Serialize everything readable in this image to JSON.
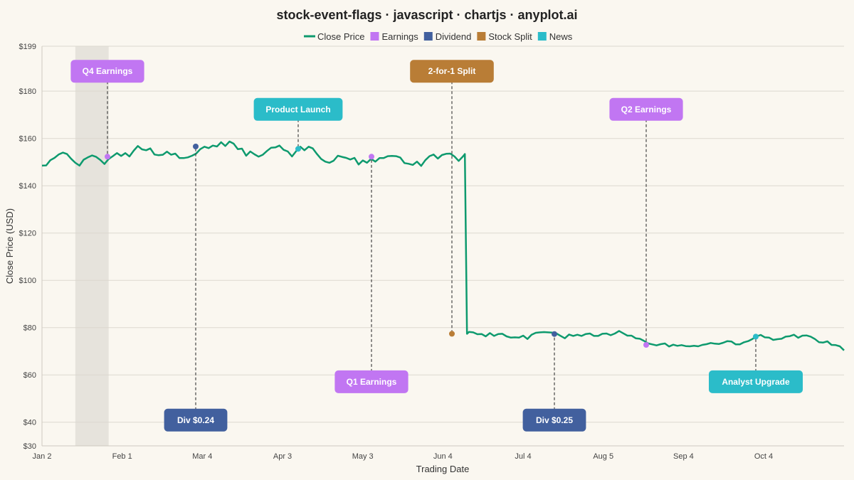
{
  "chart_data": {
    "type": "line",
    "title": "stock-event-flags · javascript · chartjs · anyplot.ai",
    "xlabel": "Trading Date",
    "ylabel": "Close Price (USD)",
    "ylim": [
      30,
      199
    ],
    "y_ticks": [
      "$199",
      "$180",
      "$160",
      "$140",
      "$120",
      "$100",
      "$80",
      "$60",
      "$40",
      "$30"
    ],
    "y_tick_values": [
      199,
      180,
      160,
      140,
      120,
      100,
      80,
      60,
      40,
      30
    ],
    "x_ticks": [
      "Jan 2",
      "Feb 1",
      "Mar 4",
      "Apr 3",
      "May 3",
      "Jun 4",
      "Jul 4",
      "Aug 5",
      "Sep 4",
      "Oct 4"
    ],
    "x_tick_days": [
      0,
      30,
      60,
      90,
      120,
      150,
      180,
      210,
      240,
      270
    ],
    "x_range_days": [
      0,
      298
    ],
    "grid": true,
    "legend_position": "top-center",
    "legend": [
      {
        "label": "Close Price",
        "color": "#0e9a6e",
        "shape": "line"
      },
      {
        "label": "Earnings",
        "color": "#c176f2",
        "shape": "box"
      },
      {
        "label": "Dividend",
        "color": "#42609e",
        "shape": "box"
      },
      {
        "label": "Stock Split",
        "color": "#b97d36",
        "shape": "box"
      },
      {
        "label": "News",
        "color": "#2bbcc9",
        "shape": "box"
      }
    ],
    "series": [
      {
        "name": "Close Price",
        "color": "#0e9a6e",
        "points": [
          [
            0,
            148.5
          ],
          [
            2,
            148.6
          ],
          [
            4,
            150.8
          ],
          [
            6,
            151.8
          ],
          [
            8,
            153.2
          ],
          [
            10,
            154
          ],
          [
            12,
            153.4
          ],
          [
            14,
            151.4
          ],
          [
            16,
            149.7
          ],
          [
            18,
            148.5
          ],
          [
            20,
            151
          ],
          [
            22,
            152
          ],
          [
            24,
            152.8
          ],
          [
            26,
            152.2
          ],
          [
            28,
            150.9
          ],
          [
            30,
            149.2
          ],
          [
            32,
            151.3
          ],
          [
            34,
            152.5
          ],
          [
            36,
            153.8
          ],
          [
            38,
            152.6
          ],
          [
            40,
            153.8
          ],
          [
            42,
            152.4
          ],
          [
            44,
            154.8
          ],
          [
            46,
            156.8
          ],
          [
            48,
            155.4
          ],
          [
            50,
            155
          ],
          [
            52,
            155.8
          ],
          [
            54,
            153.2
          ],
          [
            56,
            152.9
          ],
          [
            58,
            153.1
          ],
          [
            60,
            154.4
          ],
          [
            62,
            153.1
          ],
          [
            64,
            153.6
          ],
          [
            66,
            151.7
          ],
          [
            68,
            151.7
          ],
          [
            70,
            152
          ],
          [
            72,
            152.7
          ],
          [
            74,
            153.6
          ],
          [
            76,
            155.5
          ],
          [
            78,
            156.5
          ],
          [
            80,
            155.9
          ],
          [
            82,
            157
          ],
          [
            84,
            156.6
          ],
          [
            86,
            158.4
          ],
          [
            88,
            156.8
          ],
          [
            90,
            158.7
          ],
          [
            92,
            157.8
          ],
          [
            94,
            155.5
          ],
          [
            96,
            155.7
          ],
          [
            98,
            152.7
          ],
          [
            100,
            154.5
          ],
          [
            102,
            153.3
          ],
          [
            104,
            152.3
          ],
          [
            106,
            153.1
          ],
          [
            108,
            154.7
          ],
          [
            110,
            156.1
          ],
          [
            112,
            156.2
          ],
          [
            114,
            157
          ],
          [
            116,
            155.2
          ],
          [
            118,
            154.5
          ],
          [
            120,
            152.4
          ],
          [
            122,
            154.6
          ],
          [
            124,
            156.5
          ],
          [
            126,
            155
          ],
          [
            128,
            156.5
          ],
          [
            130,
            155.8
          ],
          [
            132,
            153.4
          ],
          [
            134,
            151.3
          ],
          [
            136,
            150.2
          ],
          [
            138,
            149.7
          ],
          [
            140,
            150.6
          ],
          [
            142,
            152.7
          ],
          [
            144,
            152.2
          ],
          [
            146,
            151.8
          ],
          [
            148,
            151.1
          ],
          [
            150,
            151.8
          ],
          [
            152,
            149
          ],
          [
            154,
            150.7
          ],
          [
            156,
            149.7
          ],
          [
            158,
            151.4
          ],
          [
            160,
            150.2
          ],
          [
            162,
            151.7
          ],
          [
            164,
            151.7
          ],
          [
            166,
            152.5
          ],
          [
            168,
            152.6
          ],
          [
            170,
            152.5
          ],
          [
            172,
            151.9
          ],
          [
            174,
            149.6
          ],
          [
            176,
            149.3
          ],
          [
            178,
            148.8
          ],
          [
            180,
            150.2
          ],
          [
            182,
            148.4
          ],
          [
            184,
            150.8
          ],
          [
            186,
            152.5
          ],
          [
            188,
            153.2
          ],
          [
            190,
            151.5
          ],
          [
            192,
            153
          ],
          [
            194,
            153.5
          ],
          [
            196,
            153.6
          ],
          [
            198,
            152.4
          ],
          [
            200,
            150.5
          ],
          [
            202,
            152.3
          ],
          [
            203,
            153.4
          ],
          [
            204,
            77.4
          ],
          [
            205,
            78.2
          ],
          [
            207,
            78
          ],
          [
            209,
            77.2
          ],
          [
            211,
            77.3
          ],
          [
            213,
            76.3
          ],
          [
            215,
            77.7
          ],
          [
            217,
            76.5
          ],
          [
            219,
            77.3
          ],
          [
            221,
            77.4
          ],
          [
            223,
            76.3
          ],
          [
            225,
            75.8
          ],
          [
            227,
            75.9
          ],
          [
            229,
            75.8
          ],
          [
            231,
            76.6
          ],
          [
            233,
            75.2
          ],
          [
            235,
            77
          ],
          [
            237,
            77.8
          ],
          [
            239,
            78
          ],
          [
            241,
            78.1
          ],
          [
            243,
            78
          ],
          [
            245,
            77.9
          ],
          [
            247,
            77.5
          ],
          [
            249,
            76.5
          ],
          [
            251,
            75.5
          ],
          [
            253,
            77.1
          ],
          [
            255,
            76.5
          ],
          [
            257,
            77
          ],
          [
            259,
            76.5
          ],
          [
            261,
            77.3
          ],
          [
            263,
            77.5
          ],
          [
            265,
            76.5
          ],
          [
            267,
            76.5
          ],
          [
            269,
            77.4
          ],
          [
            271,
            77.5
          ],
          [
            273,
            76.8
          ],
          [
            275,
            77.5
          ],
          [
            277,
            78.6
          ],
          [
            279,
            77.6
          ],
          [
            281,
            76.6
          ],
          [
            283,
            76.6
          ],
          [
            285,
            75.5
          ],
          [
            287,
            75.3
          ],
          [
            289,
            74.4
          ],
          [
            291,
            73.3
          ],
          [
            293,
            72.9
          ],
          [
            295,
            72.5
          ],
          [
            297,
            73
          ],
          [
            299,
            73.3
          ],
          [
            301,
            72
          ],
          [
            303,
            72.8
          ],
          [
            305,
            72.3
          ],
          [
            307,
            72.6
          ],
          [
            309,
            72.2
          ],
          [
            311,
            72.1
          ],
          [
            313,
            72.3
          ],
          [
            315,
            72.1
          ],
          [
            317,
            72.7
          ],
          [
            319,
            73
          ],
          [
            321,
            73.5
          ],
          [
            323,
            73.2
          ],
          [
            325,
            73.1
          ],
          [
            327,
            73.6
          ],
          [
            329,
            74.3
          ],
          [
            331,
            74.1
          ],
          [
            333,
            72.9
          ],
          [
            335,
            72.9
          ],
          [
            337,
            73.8
          ],
          [
            339,
            74.3
          ],
          [
            341,
            75.2
          ],
          [
            343,
            76.3
          ],
          [
            345,
            76.9
          ],
          [
            347,
            75.9
          ],
          [
            349,
            75.8
          ],
          [
            351,
            74.8
          ],
          [
            353,
            75.1
          ],
          [
            355,
            75.3
          ],
          [
            357,
            76.2
          ],
          [
            359,
            76.4
          ],
          [
            361,
            77
          ],
          [
            363,
            75.7
          ],
          [
            365,
            76.6
          ],
          [
            367,
            76.7
          ],
          [
            369,
            76.2
          ],
          [
            371,
            75.2
          ],
          [
            373,
            73.8
          ],
          [
            375,
            73.7
          ],
          [
            377,
            74.2
          ],
          [
            379,
            72.7
          ],
          [
            381,
            72.6
          ],
          [
            383,
            72.1
          ],
          [
            385,
            70.4
          ]
        ]
      }
    ],
    "shaded_regions": [
      {
        "from_day": 16,
        "to_day": 32,
        "color": "#e6e3dc"
      }
    ],
    "events": [
      {
        "label": "Q4 Earnings",
        "type": "Earnings",
        "day": 24,
        "value": 152.3,
        "flag_value": 188.4,
        "color": "#c176f2"
      },
      {
        "label": "Div $0.24",
        "type": "Dividend",
        "day": 57,
        "value": 156.6,
        "flag_value": 40.9,
        "color": "#42609e"
      },
      {
        "label": "Product Launch",
        "type": "News",
        "day": 95,
        "value": 155.6,
        "flag_value": 172.3,
        "color": "#2bbcc9"
      },
      {
        "label": "Q1 Earnings",
        "type": "Earnings",
        "day": 125,
        "value": 152.3,
        "flag_value": 57.1,
        "color": "#c176f2"
      },
      {
        "label": "2-for-1 Split",
        "type": "Stock Split",
        "day": 155,
        "value": 77.4,
        "flag_value": 188.4,
        "color": "#b97d36"
      },
      {
        "label": "Div $0.25",
        "type": "Dividend",
        "day": 185,
        "value": 77.3,
        "flag_value": 40.9,
        "color": "#42609e"
      },
      {
        "label": "Q2 Earnings",
        "type": "Earnings",
        "day": 225,
        "value": 72.7,
        "flag_value": 172.3,
        "color": "#c176f2"
      },
      {
        "label": "Analyst Upgrade",
        "type": "News",
        "day": 265,
        "value": 76.2,
        "flag_value": 57.1,
        "color": "#2bbcc9"
      }
    ]
  }
}
